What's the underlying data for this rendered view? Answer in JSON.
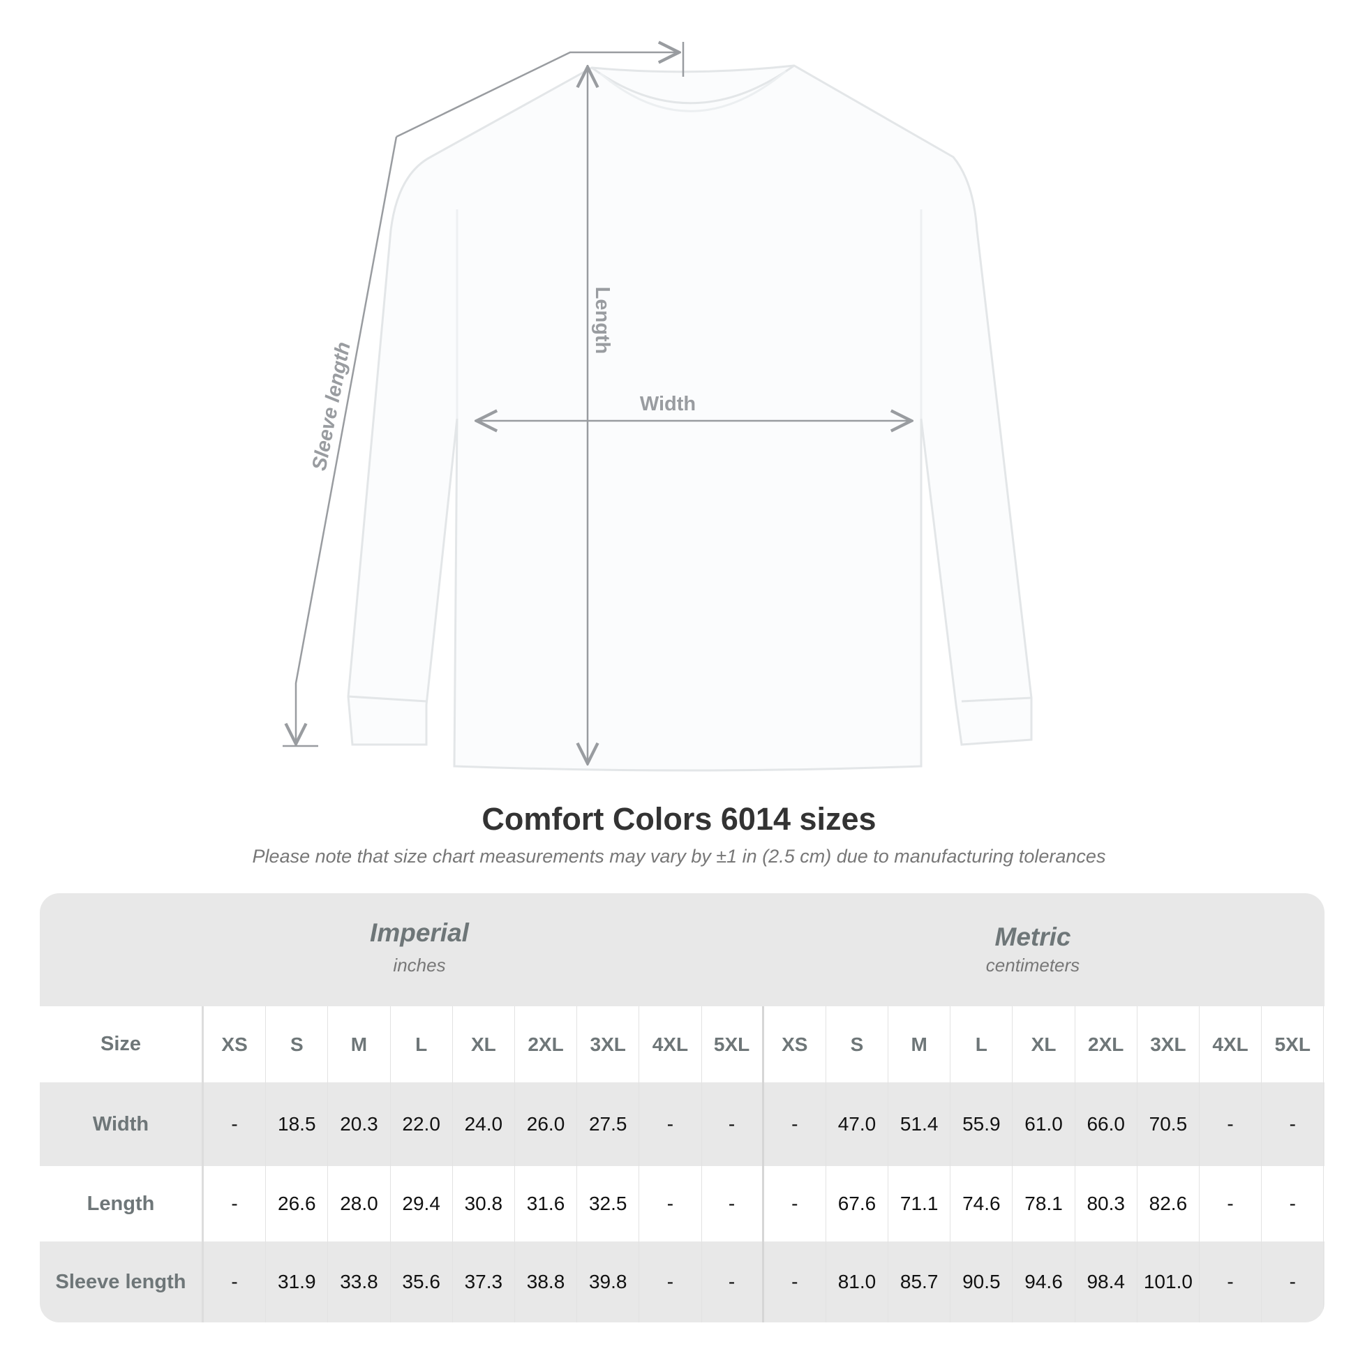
{
  "diagram": {
    "labels": {
      "length": "Length",
      "width": "Width",
      "sleeve": "Sleeve length"
    },
    "line_color": "#999ca0"
  },
  "title": "Comfort Colors 6014 sizes",
  "subtitle": "Please note that size chart measurements may vary by ±1 in (2.5 cm) due to manufacturing tolerances",
  "table": {
    "imperial": {
      "label": "Imperial",
      "unit": "inches"
    },
    "metric": {
      "label": "Metric",
      "unit": "centimeters"
    },
    "size_label": "Size",
    "sizes": [
      "XS",
      "S",
      "M",
      "L",
      "XL",
      "2XL",
      "3XL",
      "4XL",
      "5XL"
    ],
    "rows": [
      {
        "label": "Width",
        "imperial": [
          "-",
          "18.5",
          "20.3",
          "22.0",
          "24.0",
          "26.0",
          "27.5",
          "-",
          "-"
        ],
        "metric": [
          "-",
          "47.0",
          "51.4",
          "55.9",
          "61.0",
          "66.0",
          "70.5",
          "-",
          "-"
        ]
      },
      {
        "label": "Length",
        "imperial": [
          "-",
          "26.6",
          "28.0",
          "29.4",
          "30.8",
          "31.6",
          "32.5",
          "-",
          "-"
        ],
        "metric": [
          "-",
          "67.6",
          "71.1",
          "74.6",
          "78.1",
          "80.3",
          "82.6",
          "-",
          "-"
        ]
      },
      {
        "label": "Sleeve length",
        "imperial": [
          "-",
          "31.9",
          "33.8",
          "35.6",
          "37.3",
          "38.8",
          "39.8",
          "-",
          "-"
        ],
        "metric": [
          "-",
          "81.0",
          "85.7",
          "90.5",
          "94.6",
          "98.4",
          "101.0",
          "-",
          "-"
        ]
      }
    ],
    "band_color": "#e8e8e8"
  }
}
